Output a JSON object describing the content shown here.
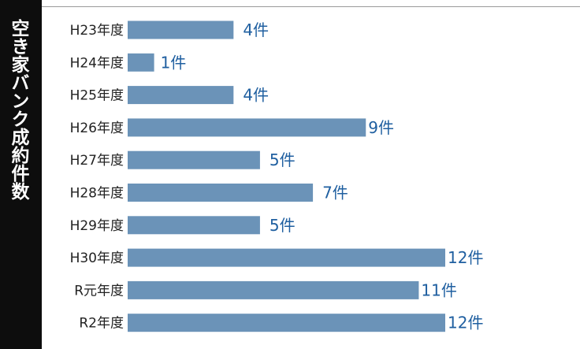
{
  "side_title": "空き家バンク成約件数",
  "chart_data": {
    "type": "bar",
    "orientation": "horizontal",
    "title": "空き家バンク成約件数",
    "categories": [
      "H23年度",
      "H24年度",
      "H25年度",
      "H26年度",
      "H27年度",
      "H28年度",
      "H29年度",
      "H30年度",
      "R元年度",
      "R2年度"
    ],
    "values": [
      4,
      1,
      4,
      9,
      5,
      7,
      5,
      12,
      11,
      12
    ],
    "value_labels": [
      "4件",
      "1件",
      "4件",
      "9件",
      "5件",
      "7件",
      "5件",
      "12件",
      "11件",
      "12件"
    ],
    "xlim": [
      0,
      12
    ],
    "grid": false,
    "colors": {
      "bar": "#6b93b8",
      "value_label": "#1f5fa0",
      "category_label": "#222222"
    }
  }
}
